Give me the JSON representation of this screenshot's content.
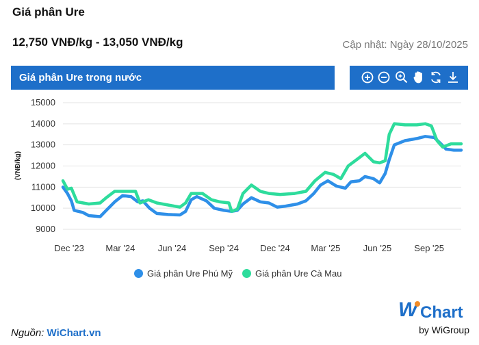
{
  "header": {
    "title": "Giá phân Ure",
    "price_range": "12,750 VNĐ/kg - 13,050 VNĐ/kg",
    "updated": "Cập nhật: Ngày 28/10/2025"
  },
  "chart_panel": {
    "title": "Giá phân Ure trong nước",
    "tools": [
      "zoom-in-icon",
      "zoom-out-icon",
      "magnifier-icon",
      "pan-hand-icon",
      "reset-icon",
      "download-icon"
    ]
  },
  "chart_data": {
    "type": "line",
    "title": "Giá phân Ure trong nước",
    "ylabel": "(VNĐ/kg)",
    "xlabel": "",
    "ylim": [
      9000,
      15000
    ],
    "yticks": [
      9000,
      10000,
      11000,
      12000,
      13000,
      14000,
      15000
    ],
    "xticks": [
      {
        "label": "Dec '23",
        "date": "2023-12-01"
      },
      {
        "label": "Mar '24",
        "date": "2024-03-01"
      },
      {
        "label": "Jun '24",
        "date": "2024-06-01"
      },
      {
        "label": "Sep '24",
        "date": "2024-09-01"
      },
      {
        "label": "Dec '24",
        "date": "2024-12-01"
      },
      {
        "label": "Mar '25",
        "date": "2025-03-01"
      },
      {
        "label": "Jun '25",
        "date": "2025-06-01"
      },
      {
        "label": "Sep '25",
        "date": "2025-09-01"
      }
    ],
    "xlim": [
      "2023-11-20",
      "2025-10-28"
    ],
    "grid": true,
    "legend_position": "bottom",
    "series": [
      {
        "name": "Giá phân Ure Phú Mỹ",
        "color": "#2e8fe8",
        "points": [
          [
            "2023-11-20",
            11000
          ],
          [
            "2023-11-28",
            10700
          ],
          [
            "2023-12-05",
            10350
          ],
          [
            "2023-12-10",
            9900
          ],
          [
            "2023-12-25",
            9800
          ],
          [
            "2024-01-05",
            9650
          ],
          [
            "2024-01-25",
            9600
          ],
          [
            "2024-02-05",
            9900
          ],
          [
            "2024-02-20",
            10300
          ],
          [
            "2024-03-05",
            10600
          ],
          [
            "2024-03-20",
            10550
          ],
          [
            "2024-04-01",
            10300
          ],
          [
            "2024-04-10",
            10350
          ],
          [
            "2024-04-22",
            10000
          ],
          [
            "2024-05-05",
            9750
          ],
          [
            "2024-05-25",
            9700
          ],
          [
            "2024-06-15",
            9680
          ],
          [
            "2024-06-25",
            9850
          ],
          [
            "2024-07-05",
            10400
          ],
          [
            "2024-07-15",
            10550
          ],
          [
            "2024-08-01",
            10350
          ],
          [
            "2024-08-15",
            10000
          ],
          [
            "2024-09-01",
            9900
          ],
          [
            "2024-09-15",
            9850
          ],
          [
            "2024-09-25",
            9900
          ],
          [
            "2024-10-05",
            10200
          ],
          [
            "2024-10-20",
            10500
          ],
          [
            "2024-11-05",
            10300
          ],
          [
            "2024-11-20",
            10250
          ],
          [
            "2024-12-05",
            10050
          ],
          [
            "2024-12-20",
            10100
          ],
          [
            "2025-01-10",
            10200
          ],
          [
            "2025-01-25",
            10350
          ],
          [
            "2025-02-08",
            10700
          ],
          [
            "2025-02-20",
            11100
          ],
          [
            "2025-03-05",
            11300
          ],
          [
            "2025-03-20",
            11050
          ],
          [
            "2025-04-05",
            10950
          ],
          [
            "2025-04-15",
            11250
          ],
          [
            "2025-04-30",
            11300
          ],
          [
            "2025-05-10",
            11500
          ],
          [
            "2025-05-25",
            11400
          ],
          [
            "2025-06-05",
            11200
          ],
          [
            "2025-06-15",
            11650
          ],
          [
            "2025-06-22",
            12300
          ],
          [
            "2025-07-01",
            13000
          ],
          [
            "2025-07-20",
            13200
          ],
          [
            "2025-08-10",
            13300
          ],
          [
            "2025-08-25",
            13400
          ],
          [
            "2025-09-10",
            13350
          ],
          [
            "2025-09-20",
            13100
          ],
          [
            "2025-10-01",
            12800
          ],
          [
            "2025-10-15",
            12750
          ],
          [
            "2025-10-28",
            12750
          ]
        ]
      },
      {
        "name": "Giá phân Ure Cà Mau",
        "color": "#2edc9c",
        "points": [
          [
            "2023-11-20",
            11300
          ],
          [
            "2023-11-28",
            10900
          ],
          [
            "2023-12-05",
            10950
          ],
          [
            "2023-12-15",
            10300
          ],
          [
            "2024-01-05",
            10200
          ],
          [
            "2024-01-25",
            10250
          ],
          [
            "2024-02-05",
            10500
          ],
          [
            "2024-02-20",
            10800
          ],
          [
            "2024-03-10",
            10800
          ],
          [
            "2024-03-28",
            10800
          ],
          [
            "2024-04-05",
            10250
          ],
          [
            "2024-04-20",
            10400
          ],
          [
            "2024-05-05",
            10250
          ],
          [
            "2024-05-25",
            10150
          ],
          [
            "2024-06-15",
            10050
          ],
          [
            "2024-06-25",
            10250
          ],
          [
            "2024-07-05",
            10700
          ],
          [
            "2024-07-25",
            10700
          ],
          [
            "2024-08-10",
            10400
          ],
          [
            "2024-08-25",
            10300
          ],
          [
            "2024-09-10",
            10250
          ],
          [
            "2024-09-15",
            9850
          ],
          [
            "2024-09-25",
            9950
          ],
          [
            "2024-10-05",
            10700
          ],
          [
            "2024-10-20",
            11100
          ],
          [
            "2024-11-05",
            10800
          ],
          [
            "2024-11-20",
            10700
          ],
          [
            "2024-12-10",
            10650
          ],
          [
            "2025-01-05",
            10700
          ],
          [
            "2025-01-25",
            10800
          ],
          [
            "2025-02-10",
            11300
          ],
          [
            "2025-02-28",
            11700
          ],
          [
            "2025-03-15",
            11600
          ],
          [
            "2025-03-28",
            11400
          ],
          [
            "2025-04-10",
            12000
          ],
          [
            "2025-04-25",
            12300
          ],
          [
            "2025-05-10",
            12600
          ],
          [
            "2025-05-25",
            12200
          ],
          [
            "2025-06-05",
            12150
          ],
          [
            "2025-06-15",
            12250
          ],
          [
            "2025-06-22",
            13500
          ],
          [
            "2025-07-01",
            14000
          ],
          [
            "2025-07-20",
            13950
          ],
          [
            "2025-08-10",
            13950
          ],
          [
            "2025-08-25",
            14000
          ],
          [
            "2025-09-05",
            13900
          ],
          [
            "2025-09-15",
            13200
          ],
          [
            "2025-09-25",
            12900
          ],
          [
            "2025-10-10",
            13050
          ],
          [
            "2025-10-28",
            13050
          ]
        ]
      }
    ]
  },
  "legend": {
    "items": [
      {
        "label": "Giá phân Ure Phú Mỹ",
        "color": "#2e8fe8"
      },
      {
        "label": "Giá phân Ure Cà Mau",
        "color": "#2edc9c"
      }
    ]
  },
  "footer": {
    "source_label": "Nguồn:",
    "source_link": "WiChart.vn",
    "logo_w": "W",
    "logo_chart": "Chart",
    "logo_by": "by WiGroup"
  }
}
